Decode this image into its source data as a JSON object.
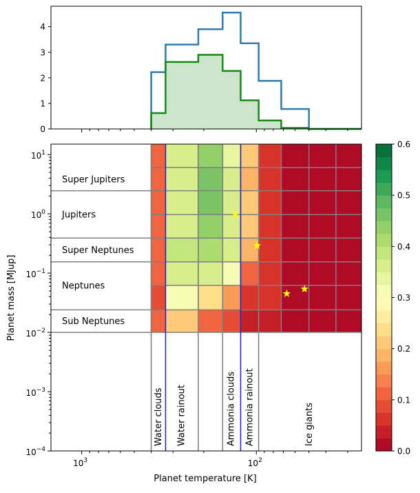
{
  "chart_data": [
    {
      "type": "histogram",
      "name": "top-histogram",
      "xscale": "log (reversed)",
      "yticks": [
        "0",
        "1",
        "2",
        "3",
        "4"
      ],
      "ylim": [
        0,
        4.8
      ],
      "bin_edges": [
        400,
        331,
        215,
        156,
        123,
        97,
        72,
        50,
        35,
        25
      ],
      "series": [
        {
          "style": "step-line",
          "color": "#2e7bb0",
          "values": [
            2.22,
            3.3,
            3.9,
            4.55,
            3.35,
            1.88,
            0.78,
            0.0,
            0.0
          ]
        },
        {
          "style": "filled-step",
          "color": "#148a14",
          "fill": "#cce5cc",
          "values": [
            0.62,
            2.62,
            2.9,
            2.27,
            1.12,
            0.33,
            0.04,
            0.0,
            0.0
          ]
        }
      ]
    },
    {
      "type": "heatmap",
      "name": "main-heatmap",
      "xlabel": "Planet temperature [K]",
      "ylabel": "Planet mass [MJup]",
      "xscale": "log (reversed)",
      "yscale": "log",
      "xlim": [
        1500,
        25
      ],
      "ylim": [
        0.0001,
        15
      ],
      "xtick_labels": [
        {
          "value": 1000,
          "base": "10",
          "exp": "3"
        },
        {
          "value": 100,
          "base": "10",
          "exp": "2"
        }
      ],
      "ytick_labels": [
        {
          "value": 10,
          "base": "10",
          "exp": "1"
        },
        {
          "value": 1,
          "base": "10",
          "exp": "0"
        },
        {
          "value": 0.1,
          "base": "10",
          "exp": "−1"
        },
        {
          "value": 0.01,
          "base": "10",
          "exp": "−2"
        },
        {
          "value": 0.001,
          "base": "10",
          "exp": "−3"
        },
        {
          "value": 0.0001,
          "base": "10",
          "exp": "−4"
        }
      ],
      "temperature_bin_edges": [
        400,
        331,
        215,
        156,
        123,
        97,
        72,
        50,
        35,
        25
      ],
      "mass_bin_edges": [
        0.01,
        0.024,
        0.062,
        0.155,
        0.39,
        0.97,
        2.45,
        6.05,
        15
      ],
      "cell_values": [
        [
          0.12,
          0.21,
          0.12,
          0.08,
          0.03,
          0.04,
          0.0,
          0.0,
          0.0
        ],
        [
          0.08,
          0.3,
          0.24,
          0.16,
          0.06,
          0.05,
          0.0,
          0.0,
          0.0
        ],
        [
          0.12,
          0.37,
          0.37,
          0.32,
          0.1,
          0.05,
          0.0,
          0.0,
          0.0
        ],
        [
          0.12,
          0.38,
          0.42,
          0.35,
          0.18,
          0.05,
          0.0,
          0.0,
          0.0
        ],
        [
          0.12,
          0.35,
          0.44,
          0.36,
          0.22,
          0.05,
          0.0,
          0.0,
          0.0
        ],
        [
          0.12,
          0.35,
          0.47,
          0.36,
          0.22,
          0.05,
          0.0,
          0.0,
          0.0
        ],
        [
          0.12,
          0.37,
          0.47,
          0.37,
          0.19,
          0.05,
          0.0,
          0.0,
          0.0
        ],
        [
          0.12,
          0.35,
          0.43,
          0.33,
          0.22,
          0.05,
          0.0,
          0.0,
          0.0
        ]
      ],
      "class_boundaries_mass": [
        0.01,
        0.024,
        0.155,
        0.39,
        2.45,
        15
      ],
      "class_labels": [
        {
          "label": "Sub Neptunes",
          "y": 0.0155
        },
        {
          "label": "Neptunes",
          "y": 0.062
        },
        {
          "label": "Super Neptunes",
          "y": 0.246
        },
        {
          "label": "Jupiters",
          "y": 0.98
        },
        {
          "label": "Super Jupiters",
          "y": 3.85
        }
      ],
      "zone_lines": [
        {
          "temperature": 400,
          "color": "#808080"
        },
        {
          "temperature": 331,
          "color": "#2626cc"
        },
        {
          "temperature": 215,
          "color": "#808080"
        },
        {
          "temperature": 156,
          "color": "#808080"
        },
        {
          "temperature": 123,
          "color": "#2626cc"
        },
        {
          "temperature": 97,
          "color": "#808080"
        }
      ],
      "zone_labels": [
        {
          "label": "Water clouds",
          "temperature": 365
        },
        {
          "label": "Water rainout",
          "temperature": 270
        },
        {
          "label": "Ammonia clouds",
          "temperature": 140
        },
        {
          "label": "Ammonia rainout",
          "temperature": 110
        },
        {
          "label": "Ice giants",
          "temperature": 50
        }
      ],
      "stars": [
        {
          "temperature": 132,
          "mass": 0.98
        },
        {
          "temperature": 99,
          "mass": 0.29
        },
        {
          "temperature": 67,
          "mass": 0.045
        },
        {
          "temperature": 53,
          "mass": 0.054
        }
      ],
      "star_color": "#ffff00"
    },
    {
      "type": "colorbar",
      "name": "colorbar",
      "colormap": "RdYlGn",
      "vmin": 0.0,
      "vmax": 0.6,
      "levels": 24,
      "tick_labels": [
        "0.0",
        "0.1",
        "0.2",
        "0.3",
        "0.4",
        "0.5",
        "0.6"
      ]
    }
  ]
}
